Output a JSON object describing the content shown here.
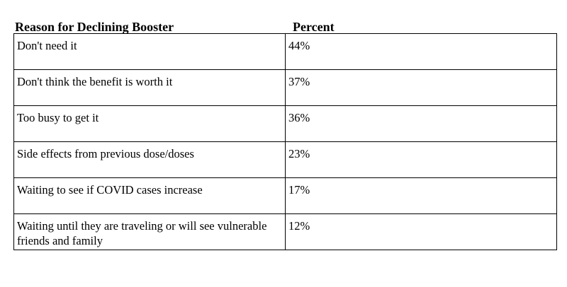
{
  "table": {
    "headers": {
      "reason": "Reason for Declining Booster",
      "percent": "Percent"
    },
    "rows": [
      {
        "reason": "Don't need it",
        "percent": "44%"
      },
      {
        "reason": "Don't think the benefit is worth it",
        "percent": "37%"
      },
      {
        "reason": "Too busy to get it",
        "percent": "36%"
      },
      {
        "reason": "Side effects from previous dose/doses",
        "percent": "23%"
      },
      {
        "reason": "Waiting to see if COVID cases increase",
        "percent": "17%"
      },
      {
        "reason": "Waiting until they are traveling or will see vulnerable friends and family",
        "percent": "12%"
      }
    ]
  }
}
